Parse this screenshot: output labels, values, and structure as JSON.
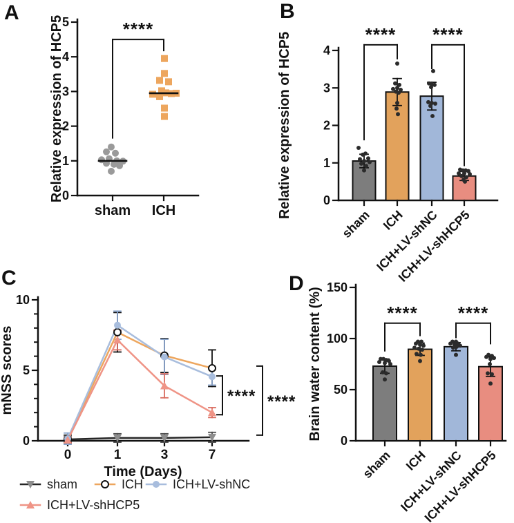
{
  "panel_labels": {
    "a": "A",
    "b": "B",
    "c": "C",
    "d": "D"
  },
  "colors": {
    "axis": "#111111",
    "gray_bar": "#7d7d7d",
    "gray_dot": "#9a9a9a",
    "orange": "#e2a25c",
    "blue": "#a1b7d9",
    "salmon": "#e88d80",
    "orange_line": "#eda65e",
    "blue_line": "#a8bddd",
    "salmon_line": "#ef9486",
    "sham_line": "#262626",
    "sham_marker": "#8e8e8e",
    "dot": "#2b2b2b",
    "salmon_err": "#d96b5f"
  },
  "chart_data": [
    {
      "id": "A",
      "type": "scatter",
      "title": "",
      "ylabel": "Relative expression of HCP5",
      "ylim": [
        0,
        5
      ],
      "yticks": [
        0,
        1,
        2,
        3,
        4,
        5
      ],
      "categories": [
        "sham",
        "ICH"
      ],
      "groups": [
        {
          "name": "sham",
          "marker": "circle",
          "color": "#9a9a9a",
          "median": 1.0,
          "points": [
            [
              -2,
              1.4
            ],
            [
              -9,
              1.26
            ],
            [
              4,
              1.22
            ],
            [
              -16,
              1.03
            ],
            [
              -5,
              1.06
            ],
            [
              6,
              1.0
            ],
            [
              15,
              0.99
            ],
            [
              -9,
              0.93
            ],
            [
              2,
              0.9
            ],
            [
              10,
              0.86
            ],
            [
              -2,
              0.7
            ]
          ]
        },
        {
          "name": "ICH",
          "marker": "square",
          "color": "#eda65e",
          "median": 2.95,
          "points": [
            [
              1,
              3.95
            ],
            [
              1,
              3.52
            ],
            [
              -6,
              3.32
            ],
            [
              7,
              3.28
            ],
            [
              -3,
              3.02
            ],
            [
              -16,
              2.92
            ],
            [
              3,
              2.96
            ],
            [
              11,
              2.94
            ],
            [
              18,
              2.95
            ],
            [
              -6,
              2.85
            ],
            [
              1,
              2.52
            ],
            [
              1,
              2.28
            ]
          ]
        }
      ],
      "significance": [
        {
          "label": "****",
          "x1": 0,
          "x2": 1,
          "top": 4.5,
          "drop1": 1.66,
          "drop2": 4.18
        }
      ]
    },
    {
      "id": "B",
      "type": "bar",
      "ylabel": "Relative expression of HCP5",
      "ylim": [
        0,
        4
      ],
      "yticks": [
        0,
        1,
        2,
        3,
        4
      ],
      "categories": [
        "sham",
        "ICH",
        "ICH+LV-shNC",
        "ICH+LV-shHCP5"
      ],
      "bars": [
        {
          "label": "sham",
          "value": 1.05,
          "error": 0.18,
          "color": "#7d7d7d",
          "dots": [
            [
              -8,
              1.4
            ],
            [
              2,
              1.25
            ],
            [
              -2,
              1.22
            ],
            [
              6,
              1.12
            ],
            [
              -6,
              1.1
            ],
            [
              0,
              1.05
            ],
            [
              8,
              1.02
            ],
            [
              -4,
              0.98
            ],
            [
              3,
              0.92
            ],
            [
              0,
              0.8
            ]
          ]
        },
        {
          "label": "ICH",
          "value": 2.89,
          "error": 0.36,
          "color": "#e2a25c",
          "dots": [
            [
              0,
              3.65
            ],
            [
              -3,
              3.12
            ],
            [
              3,
              3.08
            ],
            [
              0,
              3.0
            ],
            [
              -6,
              2.97
            ],
            [
              5,
              2.95
            ],
            [
              -2,
              2.9
            ],
            [
              2,
              2.87
            ],
            [
              0,
              2.6
            ],
            [
              -1,
              2.45
            ],
            [
              1,
              2.3
            ]
          ]
        },
        {
          "label": "ICH+LV-shNC",
          "value": 2.78,
          "error": 0.37,
          "color": "#a1b7d9",
          "dots": [
            [
              2,
              3.45
            ],
            [
              -4,
              3.12
            ],
            [
              0,
              3.1
            ],
            [
              4,
              3.08
            ],
            [
              -1,
              3.02
            ],
            [
              -5,
              2.62
            ],
            [
              0,
              2.6
            ],
            [
              5,
              2.58
            ],
            [
              -2,
              2.52
            ],
            [
              1,
              2.25
            ]
          ]
        },
        {
          "label": "ICH+LV-shHCP5",
          "value": 0.65,
          "error": 0.12,
          "color": "#e88d80",
          "dots": [
            [
              -6,
              0.82
            ],
            [
              -2,
              0.8
            ],
            [
              2,
              0.8
            ],
            [
              6,
              0.78
            ],
            [
              -8,
              0.72
            ],
            [
              0,
              0.72
            ],
            [
              8,
              0.7
            ],
            [
              -4,
              0.65
            ],
            [
              3,
              0.62
            ],
            [
              -1,
              0.55
            ],
            [
              1,
              0.5
            ]
          ]
        }
      ],
      "significance": [
        {
          "label": "****",
          "x1": 0,
          "x2": 1,
          "top": 4.15,
          "drop1": 1.62,
          "drop2": 3.78
        },
        {
          "label": "****",
          "x1": 2,
          "x2": 3,
          "top": 4.15,
          "drop1": 3.52,
          "drop2": 0.93
        }
      ]
    },
    {
      "id": "C",
      "type": "line",
      "ylabel": "mNSS scores",
      "xlabel": "Time (Days)",
      "ylim": [
        0,
        10
      ],
      "yticks": [
        0,
        5,
        10
      ],
      "yminor": [
        1,
        2,
        3,
        4,
        6,
        7,
        8,
        9
      ],
      "x": [
        0,
        1,
        3,
        7
      ],
      "series": [
        {
          "name": "sham",
          "marker": "tri-down",
          "line_color": "#262626",
          "marker_color": "#8e8e8e",
          "err_color": "#4a4a4a",
          "values": [
            0.1,
            0.2,
            0.2,
            0.25
          ],
          "errors": [
            0.2,
            0.3,
            0.3,
            0.35
          ]
        },
        {
          "name": "ICH",
          "marker": "open-circle",
          "line_color": "#eda65e",
          "marker_color": "#ffffff",
          "err_color": "#111111",
          "values": [
            0.1,
            7.7,
            6.05,
            5.15
          ],
          "errors": [
            0.3,
            1.4,
            1.2,
            1.3
          ]
        },
        {
          "name": "ICH+LV-shNC",
          "marker": "circle",
          "line_color": "#a8bddd",
          "marker_color": "#a8bddd",
          "err_color": "#8aa5cc",
          "values": [
            0.15,
            8.2,
            5.95,
            4.55
          ],
          "errors": [
            0.4,
            1.0,
            1.25,
            0.6
          ]
        },
        {
          "name": "ICH+LV-shHCP5",
          "marker": "tri-up",
          "line_color": "#ef9486",
          "marker_color": "#ef9486",
          "err_color": "#d96b5f",
          "values": [
            0.05,
            7.15,
            3.9,
            2.0
          ],
          "errors": [
            0.2,
            0.7,
            0.85,
            0.35
          ]
        }
      ],
      "significance": [
        {
          "label": "****",
          "style": "right-bracket",
          "y_top": 4.6,
          "y_bottom": 1.85
        },
        {
          "label": "****",
          "style": "right-bracket",
          "y_top": 5.3,
          "y_bottom": 0.4
        }
      ]
    },
    {
      "id": "D",
      "type": "bar",
      "ylabel": "Brain water content (%)",
      "ylim": [
        0,
        150
      ],
      "yticks": [
        0,
        50,
        100,
        150
      ],
      "categories": [
        "sham",
        "ICH",
        "ICH+LV-shNC",
        "ICH+LV-shHCP5"
      ],
      "bars": [
        {
          "label": "sham",
          "value": 73,
          "error": 7,
          "color": "#7d7d7d",
          "dots": [
            [
              -6,
              80
            ],
            [
              -2,
              80
            ],
            [
              2,
              79
            ],
            [
              6,
              78
            ],
            [
              -8,
              77
            ],
            [
              0,
              76
            ],
            [
              8,
              75
            ],
            [
              -3,
              67
            ],
            [
              2,
              66
            ],
            [
              0,
              60
            ]
          ]
        },
        {
          "label": "ICH",
          "value": 89.5,
          "error": 6,
          "color": "#e2a25c",
          "dots": [
            [
              -3,
              97
            ],
            [
              2,
              97
            ],
            [
              -6,
              95
            ],
            [
              0,
              94
            ],
            [
              5,
              93
            ],
            [
              -8,
              91
            ],
            [
              -2,
              90
            ],
            [
              3,
              89
            ],
            [
              -5,
              85
            ],
            [
              1,
              84
            ],
            [
              0,
              78
            ]
          ]
        },
        {
          "label": "ICH+LV-shNC",
          "value": 92,
          "error": 4,
          "color": "#a1b7d9",
          "dots": [
            [
              -5,
              97
            ],
            [
              0,
              97
            ],
            [
              -8,
              95
            ],
            [
              3,
              95
            ],
            [
              -2,
              94
            ],
            [
              6,
              93
            ],
            [
              1,
              92
            ],
            [
              -4,
              91
            ],
            [
              0,
              84
            ]
          ]
        },
        {
          "label": "ICH+LV-shHCP5",
          "value": 72.5,
          "error": 9.5,
          "color": "#e88d80",
          "dots": [
            [
              -3,
              84
            ],
            [
              2,
              83
            ],
            [
              -6,
              82
            ],
            [
              5,
              81
            ],
            [
              0,
              80
            ],
            [
              -1,
              75
            ],
            [
              -4,
              66
            ],
            [
              2,
              65
            ],
            [
              0,
              56
            ]
          ]
        }
      ],
      "significance": [
        {
          "label": "****",
          "x1": 0,
          "x2": 1,
          "top": 115,
          "drop1": 88,
          "drop2": 103
        },
        {
          "label": "****",
          "x1": 2,
          "x2": 3,
          "top": 115,
          "drop1": 101,
          "drop2": 95
        }
      ]
    }
  ]
}
